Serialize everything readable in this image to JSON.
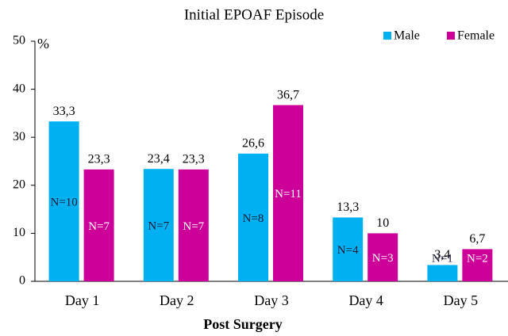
{
  "chart_data": {
    "type": "bar",
    "title": "Initial EPOAF Episode",
    "y_label": "%",
    "x_label": "Post Surgery",
    "categories": [
      "Day 1",
      "Day 2",
      "Day 3",
      "Day 4",
      "Day 5"
    ],
    "series": [
      {
        "name": "Male",
        "color": "#00b0f0",
        "values": [
          33.3,
          23.4,
          26.6,
          13.3,
          3.4
        ],
        "value_labels": [
          "33,3",
          "23,4",
          "26,6",
          "13,3",
          "3,4"
        ],
        "n_labels": [
          "N=10",
          "N=7",
          "N=8",
          "N=4",
          "N=1"
        ]
      },
      {
        "name": "Female",
        "color": "#cc0099",
        "values": [
          23.3,
          23.3,
          36.7,
          10,
          6.7
        ],
        "value_labels": [
          "23,3",
          "23,3",
          "36,7",
          "10",
          "6,7"
        ],
        "n_labels": [
          "N=7",
          "N=7",
          "N=11",
          "N=3",
          "N=2"
        ]
      }
    ],
    "ylim": [
      0,
      50
    ],
    "yticks": [
      0,
      10,
      20,
      30,
      40,
      50
    ],
    "legend": "top-right"
  }
}
